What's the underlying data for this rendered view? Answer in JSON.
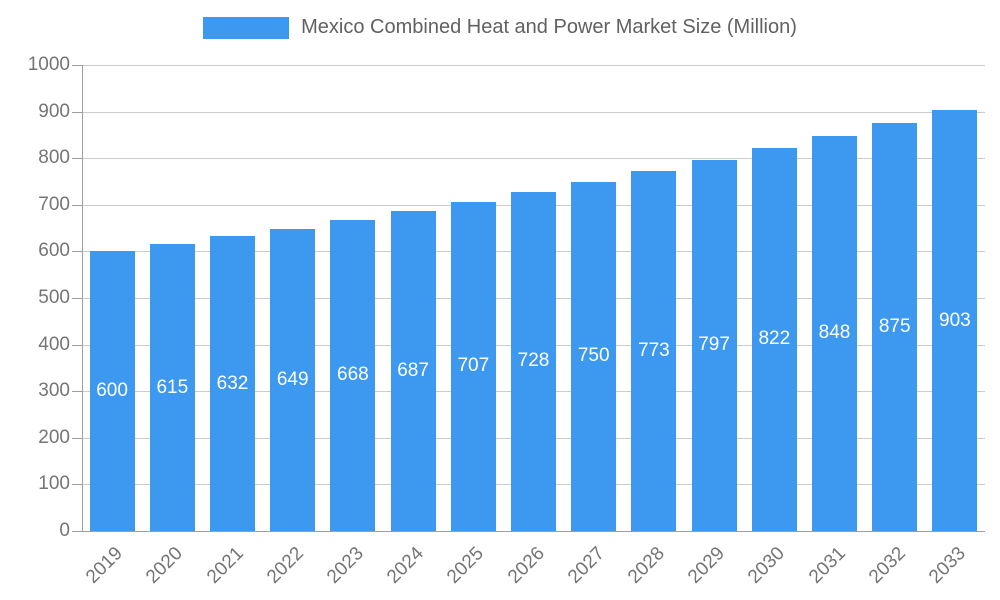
{
  "legend": {
    "label": "Mexico Combined Heat and Power Market Size (Million)",
    "swatch_color": "#3D99F0"
  },
  "chart_data": {
    "type": "bar",
    "title": "Mexico Combined Heat and Power Market Size (Million)",
    "categories": [
      "2019",
      "2020",
      "2021",
      "2022",
      "2023",
      "2024",
      "2025",
      "2026",
      "2027",
      "2028",
      "2029",
      "2030",
      "2031",
      "2032",
      "2033"
    ],
    "values": [
      600,
      615,
      632,
      649,
      668,
      687,
      707,
      728,
      750,
      773,
      797,
      822,
      848,
      875,
      903
    ],
    "xlabel": "",
    "ylabel": "",
    "ylim": [
      0,
      1000
    ],
    "yticks": [
      0,
      100,
      200,
      300,
      400,
      500,
      600,
      700,
      800,
      900,
      1000
    ],
    "grid": true,
    "legend_position": "top",
    "bar_color": "#3D99F0",
    "value_label_color": "#ffffff",
    "axis_label_color": "#757575",
    "gridline_color": "#cccccc",
    "background_color": "#ffffff"
  }
}
